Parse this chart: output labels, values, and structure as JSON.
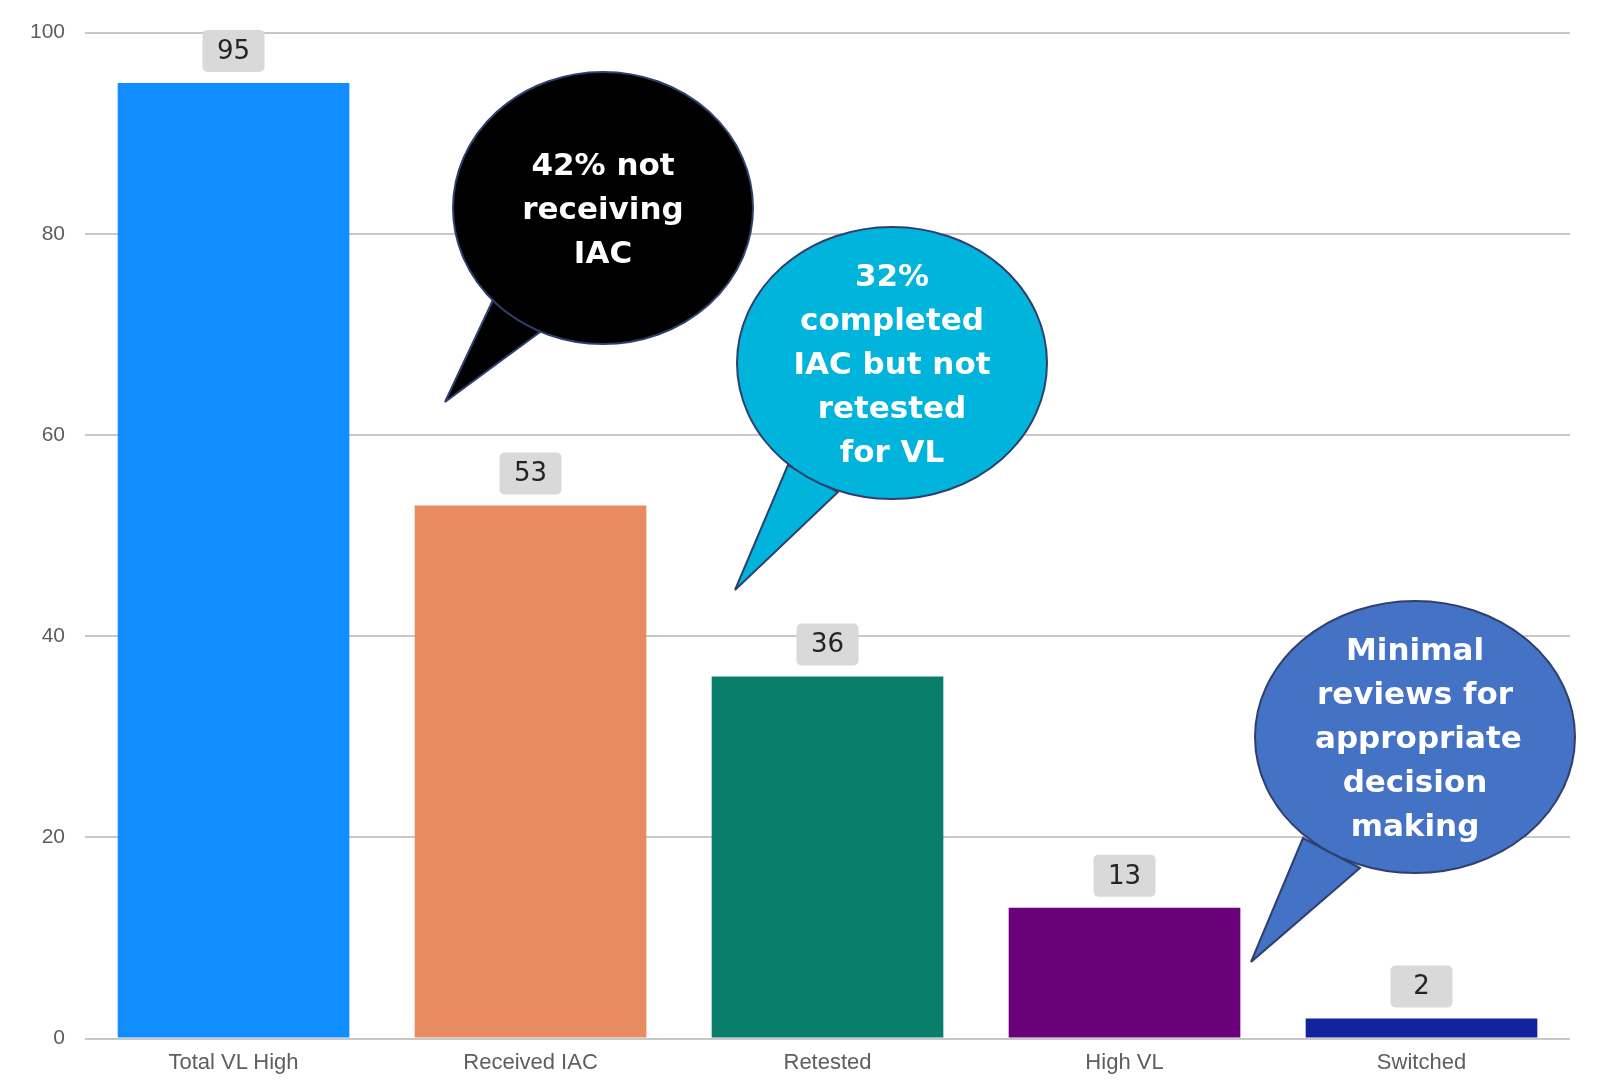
{
  "chart_data": {
    "type": "bar",
    "categories": [
      "Total VL High",
      "Received IAC",
      "Retested",
      "High VL",
      "Switched"
    ],
    "values": [
      95,
      53,
      36,
      13,
      2
    ],
    "colors": [
      "#118dff",
      "#e98b60",
      "#087e6b",
      "#6b007b",
      "#12239e"
    ],
    "ylim": [
      0,
      100
    ],
    "yticks": [
      0,
      20,
      40,
      60,
      80,
      100
    ],
    "grid": "y",
    "data_labels": true,
    "legend": false,
    "annotations": [
      "42% not receiving IAC",
      "32% completed IAC but not retested for VL",
      "Minimal reviews for appropriate decision making"
    ]
  }
}
